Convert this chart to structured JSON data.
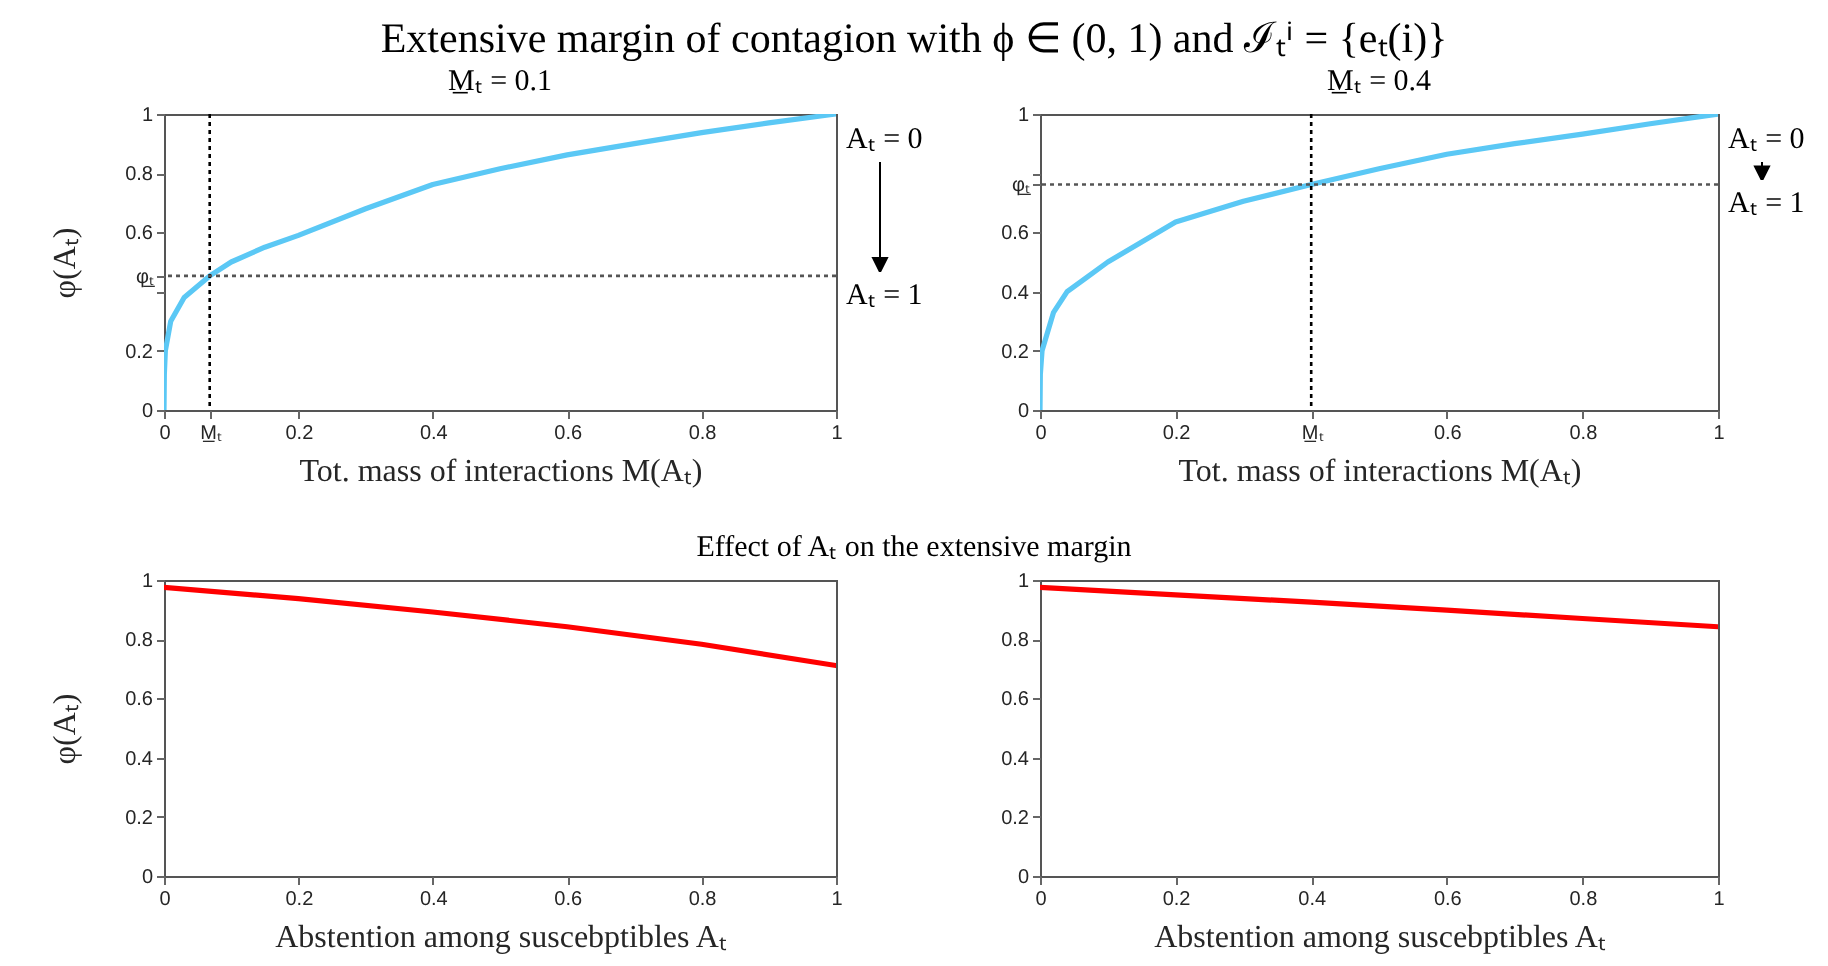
{
  "chart_data": [
    {
      "type": "line",
      "title": "Extensive margin of contagion with ϕ ∈ (0, 1) and ℐₜⁱ = {eₜ(i)}",
      "subtitle": "M̲ₜ = 0.1",
      "xlabel": "Tot. mass of interactions M(Aₜ)",
      "ylabel": "φ(Aₜ)",
      "xlim": [
        0,
        1
      ],
      "ylim": [
        0,
        1
      ],
      "xticks": [
        0,
        {
          "value": 0.068,
          "label": "M̲ₜ"
        },
        0.2,
        0.4,
        0.6,
        0.8,
        1
      ],
      "yticks": [
        0,
        0.2,
        {
          "value": 0.4,
          "label": null
        },
        {
          "value": 0.453,
          "label": "φ̲ₜ"
        },
        0.6,
        0.8,
        1
      ],
      "x": [
        0,
        0.0005,
        0.002,
        0.01,
        0.03,
        0.068,
        0.1,
        0.15,
        0.2,
        0.3,
        0.4,
        0.5,
        0.6,
        0.7,
        0.8,
        0.9,
        1
      ],
      "series": [
        {
          "color": "#5bc8f5",
          "values": [
            0,
            0.12,
            0.2,
            0.3,
            0.38,
            0.453,
            0.5,
            0.55,
            0.59,
            0.68,
            0.762,
            0.815,
            0.862,
            0.9,
            0.937,
            0.97,
            1
          ]
        }
      ],
      "ref_lines": [
        {
          "axis": "x",
          "value": 0.068,
          "color": "#000000",
          "line_style": "dotted"
        },
        {
          "axis": "y",
          "value": 0.453,
          "color": "#555555",
          "line_style": "dotted"
        }
      ],
      "annotations": [
        "Aₜ = 0",
        "Aₜ = 1"
      ]
    },
    {
      "type": "line",
      "title": "M̲ₜ = 0.4",
      "xlabel": "Tot. mass of interactions M(Aₜ)",
      "xlim": [
        0,
        1
      ],
      "ylim": [
        0,
        1
      ],
      "xticks": [
        0,
        0.2,
        {
          "value": 0.4,
          "label": "M̲ₜ"
        },
        0.6,
        0.8,
        1
      ],
      "yticks": [
        0,
        0.2,
        0.4,
        0.6,
        {
          "value": 0.762,
          "label": "φ̲ₜ"
        },
        {
          "value": 0.8,
          "label": null
        },
        1
      ],
      "x": [
        0,
        0.0005,
        0.003,
        0.02,
        0.04,
        0.07,
        0.1,
        0.2,
        0.3,
        0.4,
        0.5,
        0.6,
        0.7,
        0.8,
        0.9,
        1
      ],
      "series": [
        {
          "color": "#5bc8f5",
          "values": [
            0,
            0.12,
            0.2,
            0.33,
            0.4,
            0.45,
            0.5,
            0.635,
            0.705,
            0.762,
            0.815,
            0.864,
            0.9,
            0.932,
            0.967,
            1
          ]
        }
      ],
      "ref_lines": [
        {
          "axis": "x",
          "value": 0.4,
          "color": "#000000",
          "line_style": "dotted"
        },
        {
          "axis": "y",
          "value": 0.762,
          "color": "#555555",
          "line_style": "dotted"
        }
      ],
      "annotations": [
        "Aₜ = 0",
        "Aₜ = 1"
      ]
    },
    {
      "type": "line",
      "title": "Effect of Aₜ on the extensive margin",
      "xlabel": "Abstention among suscebptibles Aₜ",
      "ylabel": "φ(Aₜ)",
      "xlim": [
        0,
        1
      ],
      "ylim": [
        0,
        1
      ],
      "xticks": [
        0,
        0.2,
        0.4,
        0.6,
        0.8,
        1
      ],
      "yticks": [
        0,
        0.2,
        0.4,
        0.6,
        0.8,
        1
      ],
      "x": [
        0,
        0.2,
        0.4,
        0.6,
        0.8,
        1
      ],
      "series": [
        {
          "color": "#ff0000",
          "values": [
            0.975,
            0.937,
            0.892,
            0.842,
            0.783,
            0.711
          ]
        }
      ]
    },
    {
      "type": "line",
      "xlabel": "Abstention among suscebptibles Aₜ",
      "xlim": [
        0,
        1
      ],
      "ylim": [
        0,
        1
      ],
      "xticks": [
        0,
        0.2,
        0.4,
        0.6,
        0.8,
        1
      ],
      "yticks": [
        0,
        0.2,
        0.4,
        0.6,
        0.8,
        1
      ],
      "x": [
        0,
        0.2,
        0.4,
        0.6,
        0.8,
        1
      ],
      "series": [
        {
          "color": "#ff0000",
          "values": [
            0.975,
            0.95,
            0.925,
            0.898,
            0.87,
            0.842
          ]
        }
      ]
    }
  ]
}
